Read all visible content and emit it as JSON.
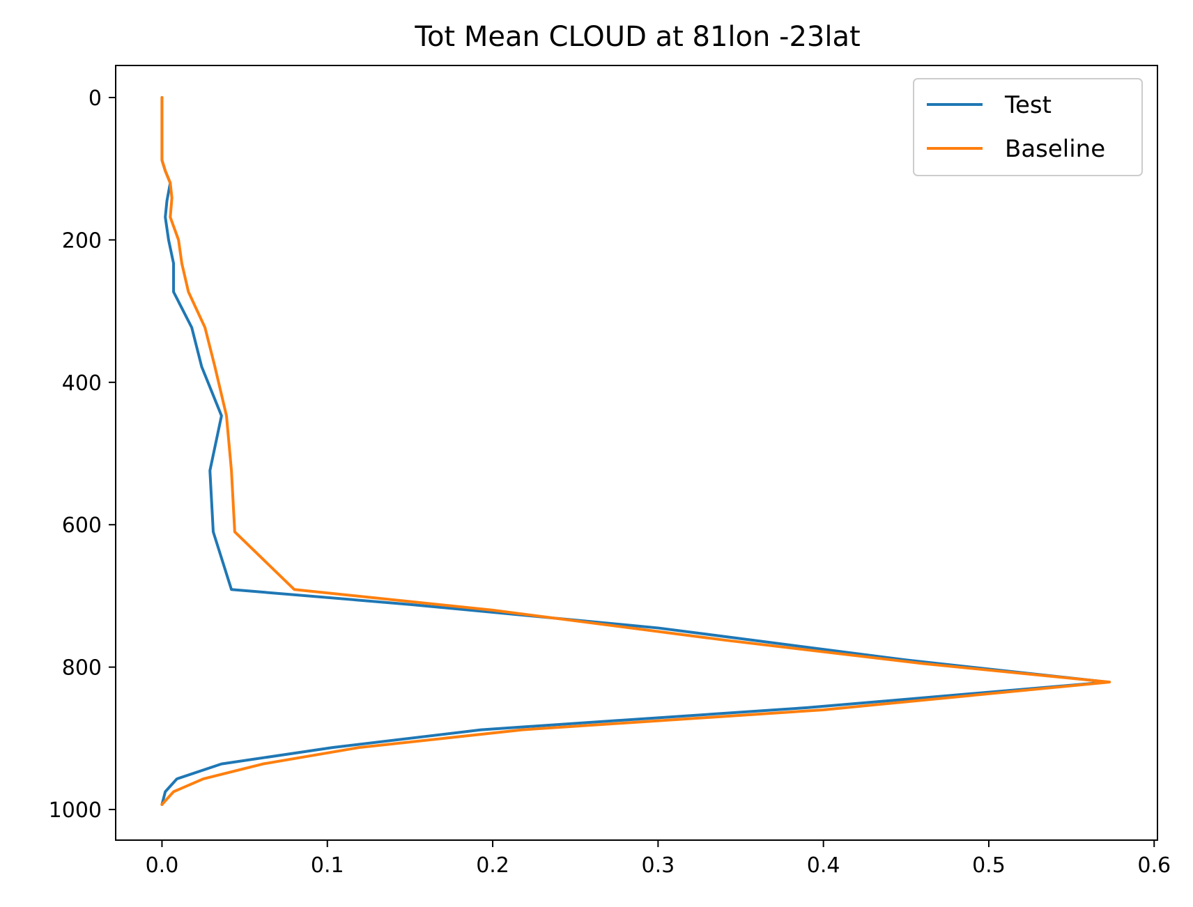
{
  "chart_data": {
    "type": "line",
    "title": "Tot Mean CLOUD at 81lon -23lat",
    "xlabel": "",
    "ylabel": "",
    "xlim": [
      -0.028,
      0.602
    ],
    "ylim": [
      1043,
      -45
    ],
    "y_inverted": true,
    "x_ticks": [
      0.0,
      0.1,
      0.2,
      0.3,
      0.4,
      0.5,
      0.6
    ],
    "x_tick_labels": [
      "0.0",
      "0.1",
      "0.2",
      "0.3",
      "0.4",
      "0.5",
      "0.6"
    ],
    "y_ticks": [
      0,
      200,
      400,
      600,
      800,
      1000
    ],
    "y_tick_labels": [
      "0",
      "200",
      "400",
      "600",
      "800",
      "1000"
    ],
    "grid": false,
    "legend_position": "top-right",
    "series": [
      {
        "name": "Test",
        "color": "#1f77b4",
        "points": [
          {
            "x": 0.0,
            "y": 0
          },
          {
            "x": 0.0,
            "y": 30
          },
          {
            "x": 0.0,
            "y": 60
          },
          {
            "x": 0.0,
            "y": 88
          },
          {
            "x": 0.002,
            "y": 103
          },
          {
            "x": 0.005,
            "y": 120
          },
          {
            "x": 0.003,
            "y": 145
          },
          {
            "x": 0.002,
            "y": 168
          },
          {
            "x": 0.004,
            "y": 200
          },
          {
            "x": 0.007,
            "y": 233
          },
          {
            "x": 0.007,
            "y": 273
          },
          {
            "x": 0.018,
            "y": 323
          },
          {
            "x": 0.024,
            "y": 378
          },
          {
            "x": 0.036,
            "y": 447
          },
          {
            "x": 0.029,
            "y": 524
          },
          {
            "x": 0.031,
            "y": 610
          },
          {
            "x": 0.042,
            "y": 691
          },
          {
            "x": 0.15,
            "y": 712
          },
          {
            "x": 0.3,
            "y": 745
          },
          {
            "x": 0.45,
            "y": 790
          },
          {
            "x": 0.572,
            "y": 821
          },
          {
            "x": 0.39,
            "y": 857
          },
          {
            "x": 0.193,
            "y": 888
          },
          {
            "x": 0.103,
            "y": 913
          },
          {
            "x": 0.036,
            "y": 936
          },
          {
            "x": 0.009,
            "y": 957
          },
          {
            "x": 0.002,
            "y": 975
          },
          {
            "x": 0.0,
            "y": 993
          }
        ]
      },
      {
        "name": "Baseline",
        "color": "#ff7f0e",
        "points": [
          {
            "x": 0.0,
            "y": 0
          },
          {
            "x": 0.0,
            "y": 30
          },
          {
            "x": 0.0,
            "y": 60
          },
          {
            "x": 0.0,
            "y": 88
          },
          {
            "x": 0.002,
            "y": 103
          },
          {
            "x": 0.005,
            "y": 120
          },
          {
            "x": 0.006,
            "y": 141
          },
          {
            "x": 0.005,
            "y": 168
          },
          {
            "x": 0.01,
            "y": 200
          },
          {
            "x": 0.012,
            "y": 233
          },
          {
            "x": 0.016,
            "y": 273
          },
          {
            "x": 0.026,
            "y": 323
          },
          {
            "x": 0.032,
            "y": 378
          },
          {
            "x": 0.039,
            "y": 447
          },
          {
            "x": 0.042,
            "y": 524
          },
          {
            "x": 0.044,
            "y": 610
          },
          {
            "x": 0.08,
            "y": 691
          },
          {
            "x": 0.2,
            "y": 720
          },
          {
            "x": 0.34,
            "y": 762
          },
          {
            "x": 0.46,
            "y": 795
          },
          {
            "x": 0.573,
            "y": 821
          },
          {
            "x": 0.4,
            "y": 860
          },
          {
            "x": 0.218,
            "y": 888
          },
          {
            "x": 0.119,
            "y": 913
          },
          {
            "x": 0.061,
            "y": 936
          },
          {
            "x": 0.025,
            "y": 957
          },
          {
            "x": 0.007,
            "y": 975
          },
          {
            "x": 0.0,
            "y": 993
          }
        ]
      }
    ]
  }
}
